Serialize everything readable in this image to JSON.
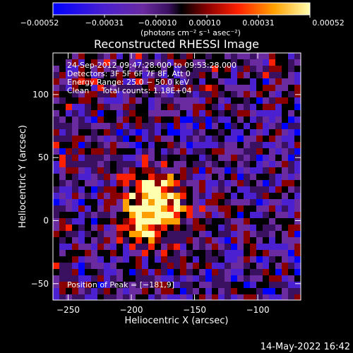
{
  "chart_data": {
    "type": "heatmap",
    "title": "Reconstructed RHESSI Image",
    "xlabel": "Heliocentric X (arcsec)",
    "ylabel": "Heliocentric Y (arcsec)",
    "xlim": [
      -262,
      -66
    ],
    "ylim": [
      -63,
      133
    ],
    "x_ticks": [
      {
        "value": -250,
        "label": "−250"
      },
      {
        "value": -200,
        "label": "−200"
      },
      {
        "value": -150,
        "label": "−150"
      },
      {
        "value": -100,
        "label": "−100"
      }
    ],
    "y_ticks": [
      {
        "value": -50,
        "label": "−50"
      },
      {
        "value": 0,
        "label": "0"
      },
      {
        "value": 50,
        "label": "50"
      },
      {
        "value": 100,
        "label": "100"
      }
    ],
    "colorbar": {
      "range": [
        -0.00052,
        0.00052
      ],
      "ticks": [
        {
          "value": -0.00052,
          "label": "−0.00052"
        },
        {
          "value": -0.00031,
          "label": "−0.00031"
        },
        {
          "value": -0.0001,
          "label": "−0.00010"
        },
        {
          "value": 0.0001,
          "label": "0.00010"
        },
        {
          "value": 0.00031,
          "label": "0.00031"
        },
        {
          "value": 0.00052,
          "label": "0.00052"
        }
      ],
      "unit_label": "(photons cm⁻² s⁻¹ asec⁻²)",
      "colors": [
        "#0000ff",
        "#4a20d0",
        "#6a2aa0",
        "#3a1060",
        "#000000",
        "#8a0000",
        "#ff2000",
        "#ffa000",
        "#ffffb0"
      ]
    },
    "annotations": [
      "24-Sep-2012 09:47:28.000 to 09:53:28.000",
      "Detectors: 3F 5F 6F 7F 8F, Att 0",
      "Energy Range: 25.0 − 50.0 keV",
      "Clean     Total counts: 1.18E+04"
    ],
    "peak_note": "Position of Peak = [−181,9]",
    "peak": [
      -181,
      9
    ],
    "date_stamp": "14-May-2022 16:42"
  }
}
